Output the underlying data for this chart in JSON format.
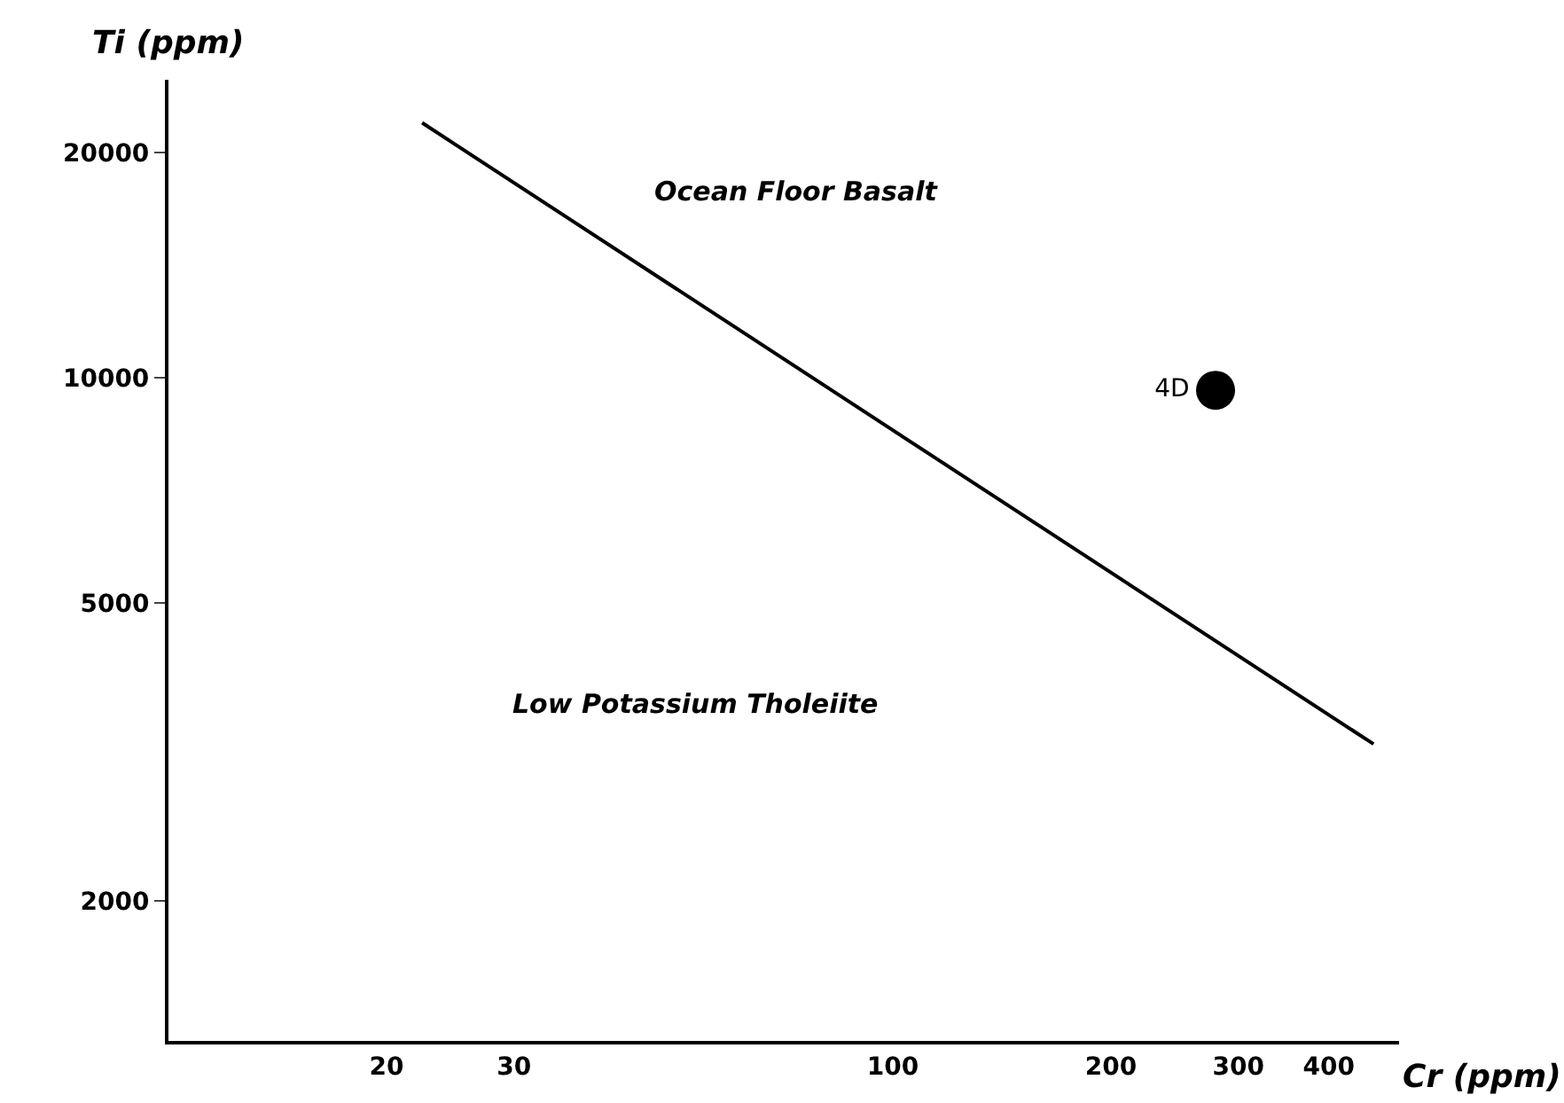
{
  "chart_data": {
    "type": "line",
    "xlabel": "Cr (ppm)",
    "ylabel": "Ti (ppm)",
    "log": "xy",
    "grid": false,
    "legend": false,
    "xlim": [
      10,
      500
    ],
    "xticks": [
      20,
      30,
      100,
      200,
      300,
      400
    ],
    "ylim": [
      1300,
      25000
    ],
    "yticks": [
      2000,
      5000,
      10000,
      20000
    ],
    "series": [
      {
        "color": "#000000",
        "x": [
          22.4,
          461
        ],
        "values": [
          21900,
          3240
        ],
        "line_style": "solid",
        "marker": "none"
      },
      {
        "type": "scatter",
        "name": "4D",
        "color": "#000000",
        "x": [
          279
        ],
        "values": [
          9620
        ],
        "marker": "circle"
      }
    ],
    "annotations": [
      "Ocean Floor Basalt",
      "Low Potassium Tholeiite"
    ]
  }
}
